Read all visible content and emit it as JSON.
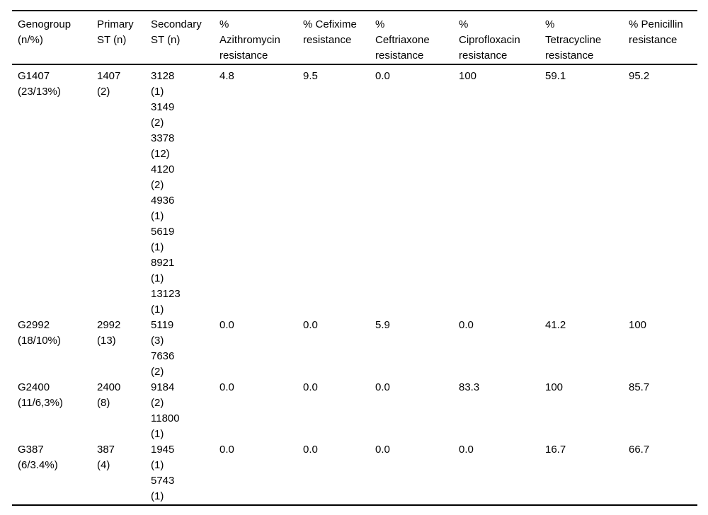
{
  "table": {
    "headers": [
      "Genogroup\n(n/%)",
      "Primary\nST (n)",
      "Secondary\nST (n)",
      "%\nAzithromycin\nresistance",
      "% Cefixime\nresistance",
      "%\nCeftriaxone\nresistance",
      "%\nCiprofloxacin\nresistance",
      "%\nTetracycline\nresistance",
      "% Penicillin\nresistance"
    ],
    "rows": [
      [
        "G1407\n(23/13%)",
        "1407\n(2)",
        "3128\n(1)\n3149\n(2)\n3378\n(12)\n4120\n(2)\n4936\n(1)\n5619\n(1)\n8921\n(1)\n13123\n(1)",
        "4.8",
        "9.5",
        "0.0",
        "100",
        "59.1",
        "95.2"
      ],
      [
        "G2992\n(18/10%)",
        "2992\n(13)",
        "5119\n(3)\n7636\n(2)",
        "0.0",
        "0.0",
        "5.9",
        "0.0",
        "41.2",
        "100"
      ],
      [
        "G2400\n(11/6,3%)",
        "2400\n(8)",
        "9184\n(2)\n11800\n(1)",
        "0.0",
        "0.0",
        "0.0",
        "83.3",
        "100",
        "85.7"
      ],
      [
        "G387\n(6/3.4%)",
        "387\n(4)",
        "1945\n(1)\n5743\n(1)",
        "0.0",
        "0.0",
        "0.0",
        "0.0",
        "16.7",
        "66.7"
      ]
    ],
    "records": [
      {
        "genogroup": "G1407",
        "n_pct": "23/13%",
        "primary_st": "1407",
        "primary_n": 2,
        "secondary_sts": [
          {
            "st": "3128",
            "n": 1
          },
          {
            "st": "3149",
            "n": 2
          },
          {
            "st": "3378",
            "n": 12
          },
          {
            "st": "4120",
            "n": 2
          },
          {
            "st": "4936",
            "n": 1
          },
          {
            "st": "5619",
            "n": 1
          },
          {
            "st": "8921",
            "n": 1
          },
          {
            "st": "13123",
            "n": 1
          }
        ],
        "azithromycin_pct": "4.8",
        "cefixime_pct": "9.5",
        "ceftriaxone_pct": "0.0",
        "ciprofloxacin_pct": "100",
        "tetracycline_pct": "59.1",
        "penicillin_pct": "95.2"
      },
      {
        "genogroup": "G2992",
        "n_pct": "18/10%",
        "primary_st": "2992",
        "primary_n": 13,
        "secondary_sts": [
          {
            "st": "5119",
            "n": 3
          },
          {
            "st": "7636",
            "n": 2
          }
        ],
        "azithromycin_pct": "0.0",
        "cefixime_pct": "0.0",
        "ceftriaxone_pct": "5.9",
        "ciprofloxacin_pct": "0.0",
        "tetracycline_pct": "41.2",
        "penicillin_pct": "100"
      },
      {
        "genogroup": "G2400",
        "n_pct": "11/6,3%",
        "primary_st": "2400",
        "primary_n": 8,
        "secondary_sts": [
          {
            "st": "9184",
            "n": 2
          },
          {
            "st": "11800",
            "n": 1
          }
        ],
        "azithromycin_pct": "0.0",
        "cefixime_pct": "0.0",
        "ceftriaxone_pct": "0.0",
        "ciprofloxacin_pct": "83.3",
        "tetracycline_pct": "100",
        "penicillin_pct": "85.7"
      },
      {
        "genogroup": "G387",
        "n_pct": "6/3.4%",
        "primary_st": "387",
        "primary_n": 4,
        "secondary_sts": [
          {
            "st": "1945",
            "n": 1
          },
          {
            "st": "5743",
            "n": 1
          }
        ],
        "azithromycin_pct": "0.0",
        "cefixime_pct": "0.0",
        "ceftriaxone_pct": "0.0",
        "ciprofloxacin_pct": "0.0",
        "tetracycline_pct": "16.7",
        "penicillin_pct": "66.7"
      }
    ],
    "colors": {
      "text": "#000000",
      "border": "#000000",
      "background": "#ffffff"
    }
  }
}
